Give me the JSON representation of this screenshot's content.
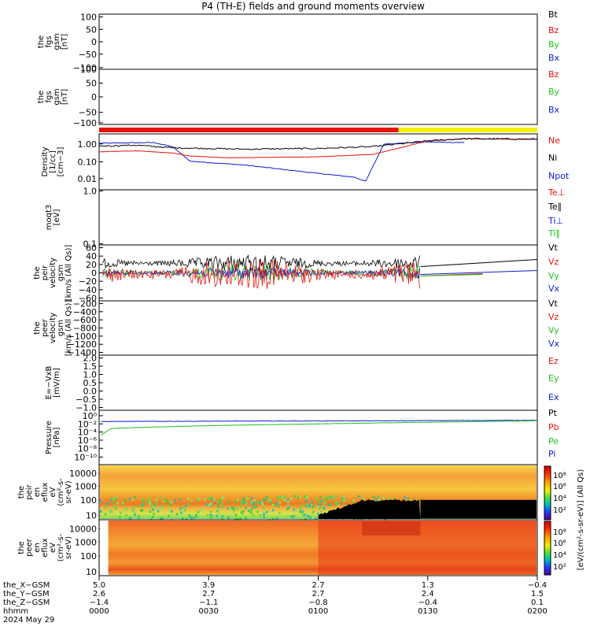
{
  "title": "P4 (TH-E) fields and ground moments overview",
  "colors": {
    "black": "#000000",
    "red": "#e8120c",
    "green": "#1fc21f",
    "blue": "#0b1bd6",
    "yellow": "#f6f000"
  },
  "panels": [
    {
      "id": "p1",
      "ylabel": [
        "the",
        "fgs",
        "gsm",
        "[nT]"
      ],
      "ticks": [
        "100",
        "50",
        "0",
        "−50",
        "−100"
      ],
      "legend": [
        {
          "text": "Bt",
          "color": "#000000"
        },
        {
          "text": "Bz",
          "color": "#e8120c"
        },
        {
          "text": "By",
          "color": "#1fc21f"
        },
        {
          "text": "Bx",
          "color": "#0b1bd6"
        }
      ]
    },
    {
      "id": "p2",
      "ylabel": [
        "the",
        "fgs",
        "gsm",
        "[nT]"
      ],
      "ticks": [
        "100",
        "50",
        "0",
        "−50",
        "−100"
      ],
      "legend": [
        {
          "text": "Bz",
          "color": "#e8120c"
        },
        {
          "text": "By",
          "color": "#1fc21f"
        },
        {
          "text": "Bx",
          "color": "#0b1bd6"
        }
      ]
    },
    {
      "id": "p3",
      "ylabel": [
        "Density",
        "[1/cc]",
        "[cm−3]"
      ],
      "ticks": [
        "1.00",
        "0.10",
        "0.01"
      ],
      "legend": [
        {
          "text": "Ne",
          "color": "#e8120c"
        },
        {
          "text": "Ni",
          "color": "#000000"
        },
        {
          "text": "Npot",
          "color": "#0b1bd6"
        }
      ]
    },
    {
      "id": "p4",
      "ylabel": [
        "moqt3",
        "[eV]"
      ],
      "ticks": [
        "1.0",
        "0.1"
      ],
      "legend": [
        {
          "text": "Te⊥",
          "color": "#e8120c"
        },
        {
          "text": "Te∥",
          "color": "#000000"
        },
        {
          "text": "Ti⊥",
          "color": "#0b1bd6"
        },
        {
          "text": "Ti∥",
          "color": "#1fc21f"
        }
      ]
    },
    {
      "id": "p5",
      "ylabel": [
        "the",
        "peir",
        "velocity",
        "gsm",
        "[km/s (All Qs)]"
      ],
      "ticks": [
        "60",
        "40",
        "20",
        "0",
        "−20",
        "−40",
        "−60"
      ],
      "legend": [
        {
          "text": "Vt",
          "color": "#000000"
        },
        {
          "text": "Vz",
          "color": "#e8120c"
        },
        {
          "text": "Vy",
          "color": "#1fc21f"
        },
        {
          "text": "Vx",
          "color": "#0b1bd6"
        }
      ]
    },
    {
      "id": "p6",
      "ylabel": [
        "the",
        "peer",
        "velocity",
        "gsm",
        "[km/s (All Qs)]"
      ],
      "ticks": [
        "−200",
        "−400",
        "−600",
        "−800",
        "−1000",
        "−1200",
        "−1400"
      ],
      "legend": [
        {
          "text": "Vt",
          "color": "#000000"
        },
        {
          "text": "Vz",
          "color": "#e8120c"
        },
        {
          "text": "Vy",
          "color": "#1fc21f"
        },
        {
          "text": "Vx",
          "color": "#0b1bd6"
        }
      ]
    },
    {
      "id": "p7",
      "ylabel": [
        "E=−VxB",
        "[mV/m]"
      ],
      "ticks": [
        "2.0",
        "1.5",
        "1.0",
        "0.5",
        "0.0",
        "−0.5",
        "−1.0"
      ],
      "legend": [
        {
          "text": "Ez",
          "color": "#e8120c"
        },
        {
          "text": "Ey",
          "color": "#1fc21f"
        },
        {
          "text": "Ex",
          "color": "#0b1bd6"
        }
      ]
    },
    {
      "id": "p8",
      "ylabel": [
        "Pressure",
        "[nPa]"
      ],
      "ticks": [
        "10⁰",
        "10⁻²",
        "10⁻⁴",
        "10⁻⁶",
        "10⁻⁸",
        "10⁻¹⁰"
      ],
      "legend": [
        {
          "text": "Pt",
          "color": "#000000"
        },
        {
          "text": "Pb",
          "color": "#e8120c"
        },
        {
          "text": "Pe",
          "color": "#1fc21f"
        },
        {
          "text": "Pi",
          "color": "#0b1bd6"
        }
      ]
    },
    {
      "id": "p9",
      "ylabel": [
        "the",
        "peir",
        "en",
        "eflux",
        "eV",
        "(cm²-s-",
        "sr-eV)"
      ],
      "ticks": [
        "10000",
        "1000",
        "100",
        "10"
      ]
    },
    {
      "id": "p10",
      "ylabel": [
        "the",
        "peer",
        "en",
        "eflux",
        "eV",
        "(cm²-s-",
        "sr-eV)"
      ],
      "ticks": [
        "10000",
        "1000",
        "100",
        "10"
      ]
    }
  ],
  "colorbar": {
    "label": "[eV/(cm²-s-sr-eV)] (All Qs)",
    "upper_ticks": [
      "10⁸",
      "10⁶",
      "10⁴",
      "10²"
    ],
    "lower_ticks": [
      "10⁸",
      "10⁶",
      "10⁴",
      "10²"
    ]
  },
  "xaxis": {
    "row_labels": [
      "the_X−GSM",
      "the_Y−GSM",
      "the_Z−GSM",
      "hhmm",
      "2024 May 29"
    ],
    "columns": [
      {
        "values": [
          "5.0",
          "2.6",
          "−1.4",
          "0000"
        ]
      },
      {
        "values": [
          "3.9",
          "2.7",
          "−1.1",
          "0030"
        ]
      },
      {
        "values": [
          "2.7",
          "2.7",
          "−0.8",
          "0100"
        ]
      },
      {
        "values": [
          "1.3",
          "2.4",
          "−0.4",
          "0130"
        ]
      },
      {
        "values": [
          "−0.4",
          "1.5",
          "0.1",
          "0200"
        ]
      }
    ]
  },
  "chart_data": {
    "type": "line",
    "title": "P4 (TH-E) fields and ground moments overview",
    "x_range_hhmm": [
      "0000",
      "0200"
    ],
    "status_bar": [
      {
        "from_hhmm": "0000",
        "to_hhmm": "0122",
        "color": "#e8120c"
      },
      {
        "from_hhmm": "0122",
        "to_hhmm": "0200",
        "color": "#f6f000"
      }
    ],
    "series": {
      "density_ni": {
        "x_min": [
          0,
          10,
          20,
          40,
          60,
          75,
          90,
          100,
          120
        ],
        "y": [
          0.75,
          0.85,
          0.6,
          0.5,
          0.55,
          0.7,
          1.5,
          2.0,
          1.9
        ]
      },
      "density_ne": {
        "x_min": [
          0,
          10,
          20,
          25,
          35,
          60,
          75,
          90,
          100,
          120
        ],
        "y": [
          0.35,
          0.4,
          0.3,
          0.2,
          0.16,
          0.18,
          0.25,
          1.5,
          2.0,
          1.8
        ]
      },
      "density_npot": {
        "x_min": [
          0,
          15,
          20,
          25,
          40,
          60,
          70,
          73,
          78,
          90,
          100
        ],
        "y": [
          1.1,
          1.2,
          0.7,
          0.1,
          0.06,
          0.02,
          0.012,
          0.007,
          1.0,
          1.3,
          1.2
        ]
      },
      "pressure_pi": {
        "x_min": [
          0,
          40,
          80,
          100,
          120
        ],
        "y": [
          0.04,
          0.05,
          0.06,
          0.07,
          0.08
        ]
      },
      "pressure_pe": {
        "x_min": [
          0,
          3,
          5,
          30,
          80,
          120
        ],
        "y": [
          1e-05,
          0.0006,
          0.001,
          0.004,
          0.02,
          0.06
        ]
      }
    }
  }
}
